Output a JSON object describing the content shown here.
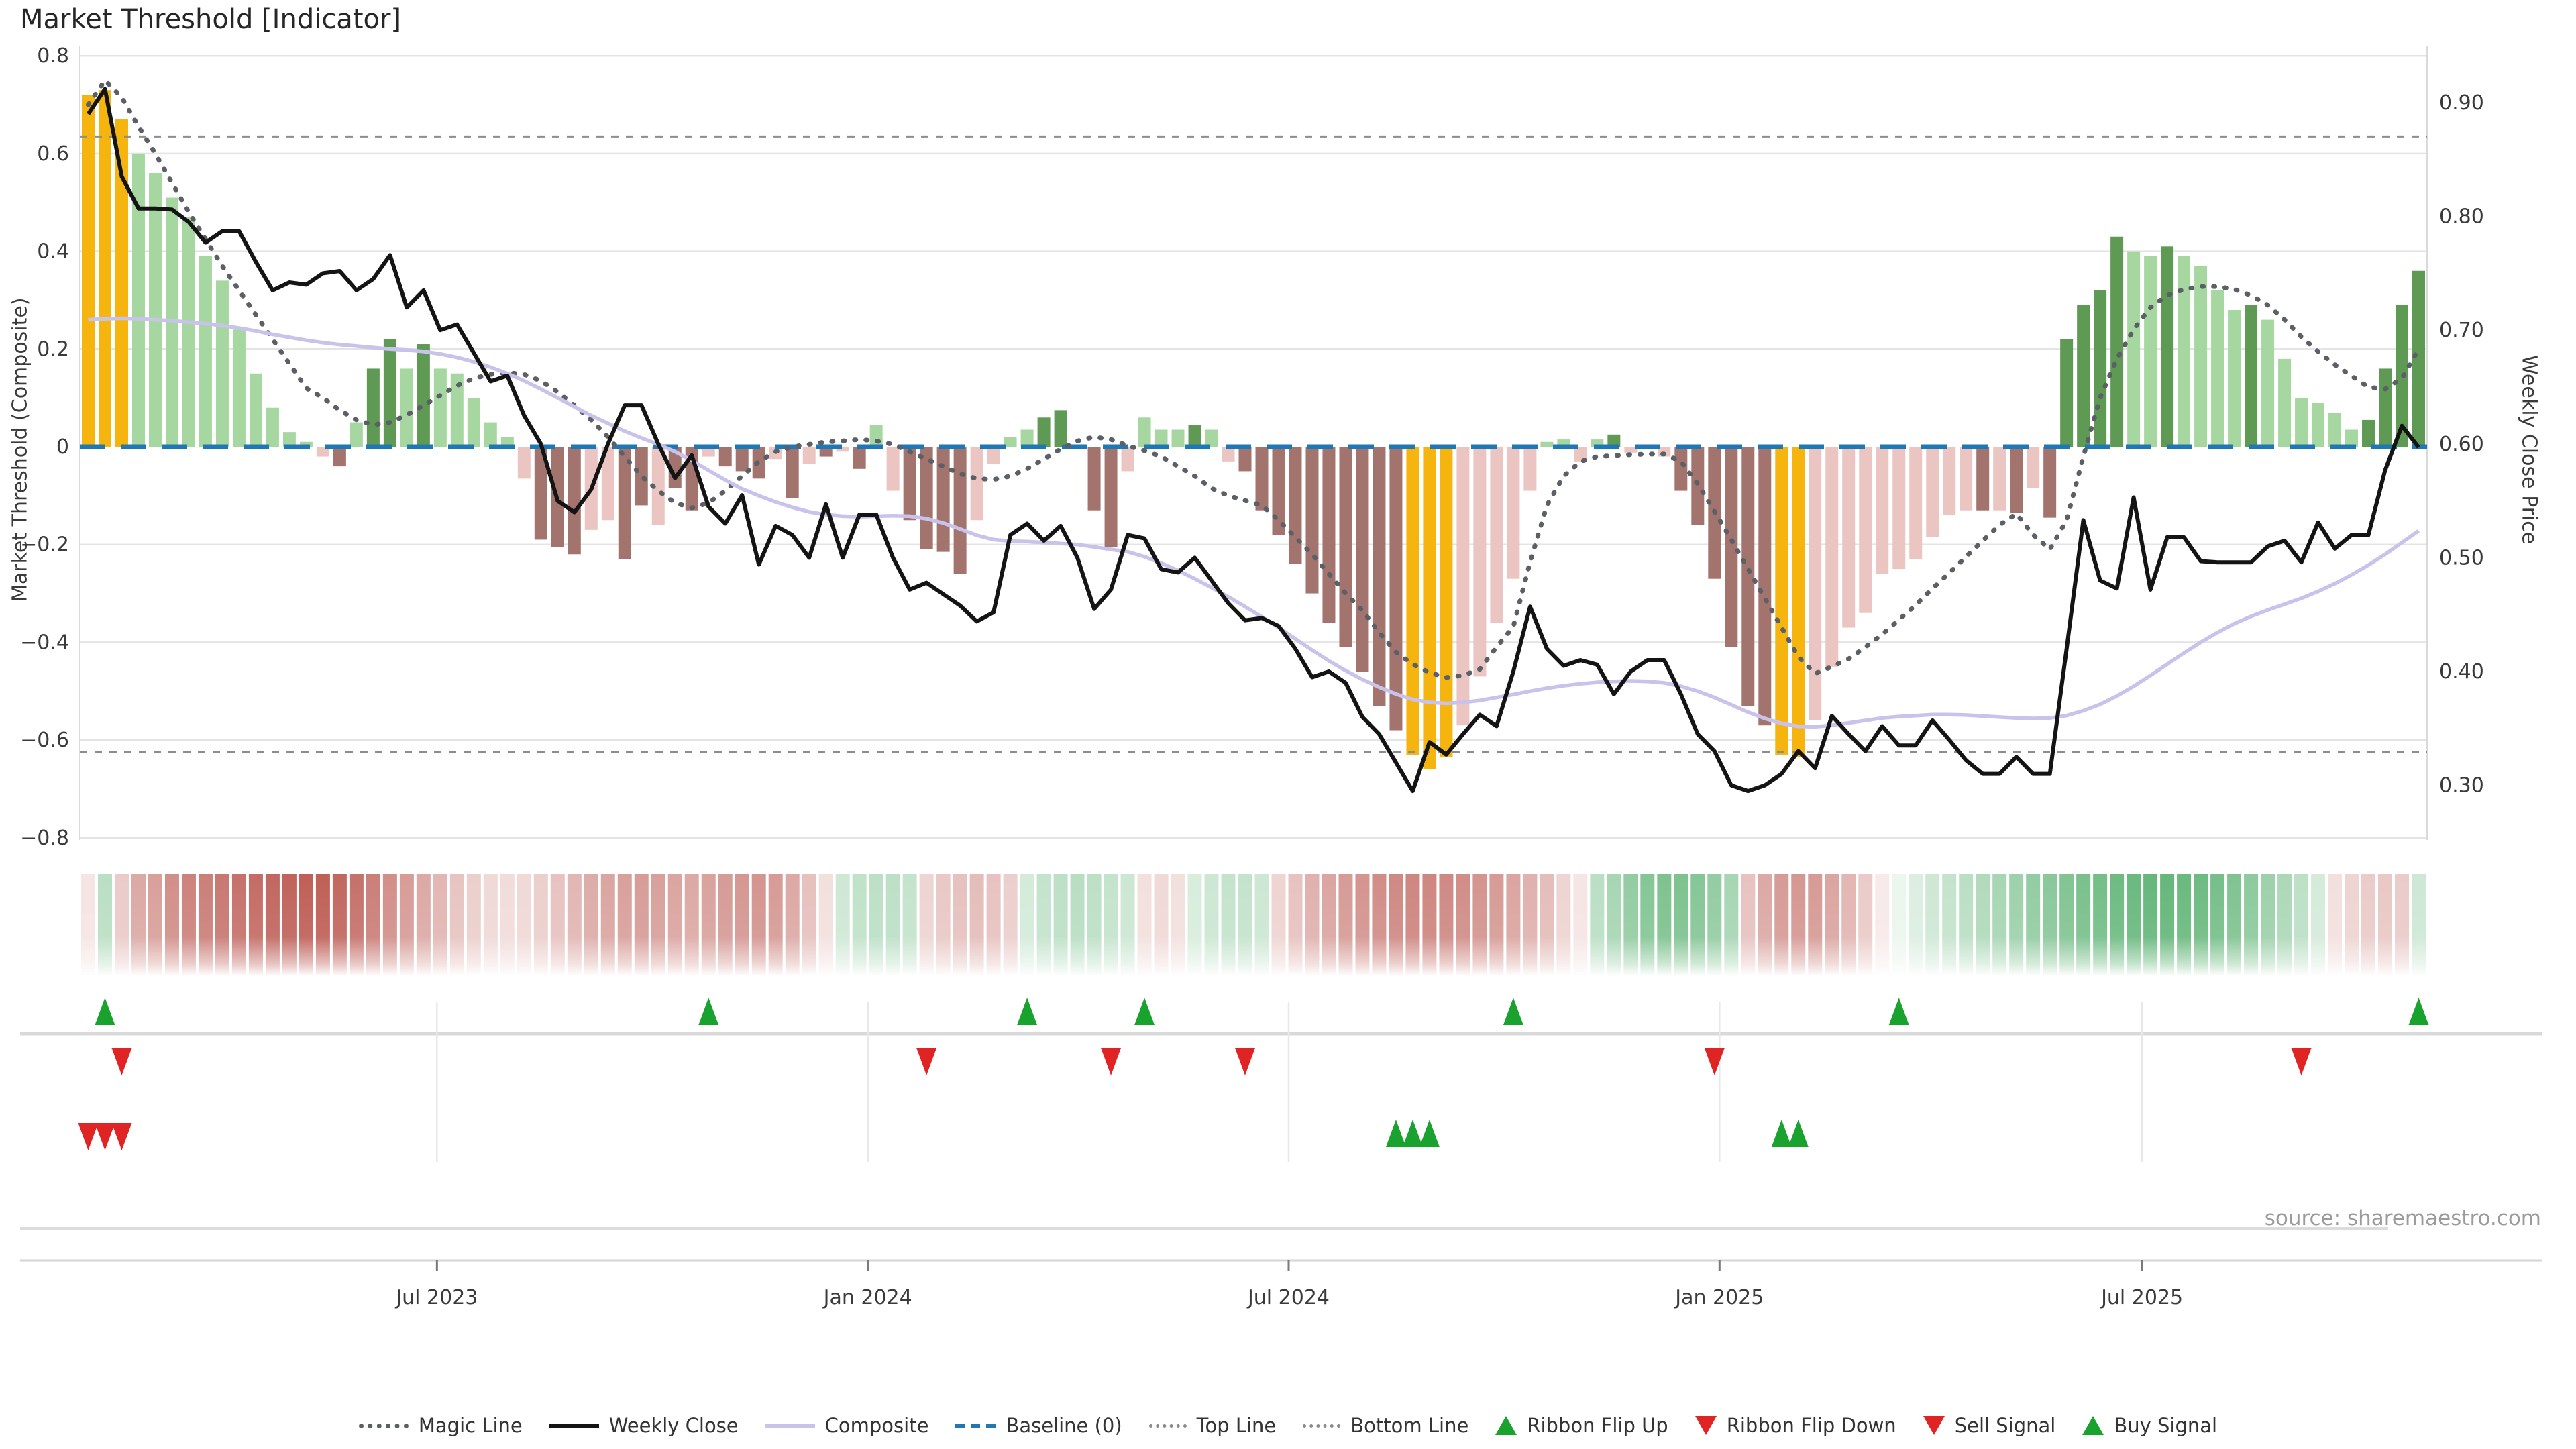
{
  "title": "Market Threshold [Indicator]",
  "source": "source: sharemaestro.com",
  "axes": {
    "left_label": "Market Threshold (Composite)",
    "right_label": "Weekly Close Price",
    "left_ticks": [
      {
        "v": 0.8,
        "label": "0.8"
      },
      {
        "v": 0.6,
        "label": "0.6"
      },
      {
        "v": 0.4,
        "label": "0.4"
      },
      {
        "v": 0.2,
        "label": "0.2"
      },
      {
        "v": 0,
        "label": "0"
      },
      {
        "v": -0.2,
        "label": "−0.2"
      },
      {
        "v": -0.4,
        "label": "−0.4"
      },
      {
        "v": -0.6,
        "label": "−0.6"
      },
      {
        "v": -0.8,
        "label": "−0.8"
      }
    ],
    "right_ticks": [
      {
        "v": 0.9,
        "label": "0.90"
      },
      {
        "v": 0.8,
        "label": "0.80"
      },
      {
        "v": 0.7,
        "label": "0.70"
      },
      {
        "v": 0.6,
        "label": "0.60"
      },
      {
        "v": 0.5,
        "label": "0.50"
      },
      {
        "v": 0.4,
        "label": "0.40"
      },
      {
        "v": 0.3,
        "label": "0.30"
      }
    ],
    "x_ticks": [
      {
        "label": "Jul 2023",
        "week": 21.3
      },
      {
        "label": "Jan 2024",
        "week": 47.0
      },
      {
        "label": "Jul 2024",
        "week": 72.1
      },
      {
        "label": "Jan 2025",
        "week": 97.8
      },
      {
        "label": "Jul 2025",
        "week": 123.0
      }
    ]
  },
  "colors": {
    "bar_palette": {
      "G": "#F6B40E",
      "g": "#A7D7A0",
      "d": "#5F9A55",
      "p": "#EBC5C1",
      "m": "#A3746D"
    },
    "weekly_close": "#141414",
    "composite": "#C9C2EB",
    "magic_line": "#5C6066",
    "baseline": "#1F77B4",
    "top_bottom_line": "#8D8D8D",
    "grid": "#E4E4E4",
    "signal_green": "#1AA22E",
    "signal_red": "#E02424",
    "ribbon_red_base": "#B9524A",
    "ribbon_green_base": "#3BA356"
  },
  "legend": {
    "items": [
      {
        "label": "Magic Line",
        "swatch": "magic"
      },
      {
        "label": "Weekly Close",
        "swatch": "close"
      },
      {
        "label": "Composite",
        "swatch": "composite"
      },
      {
        "label": "Baseline (0)",
        "swatch": "baseline"
      },
      {
        "label": "Top Line",
        "swatch": "topline"
      },
      {
        "label": "Bottom Line",
        "swatch": "bottomline"
      },
      {
        "label": "Ribbon Flip Up",
        "swatch": "tri-up"
      },
      {
        "label": "Ribbon Flip Down",
        "swatch": "tri-down"
      },
      {
        "label": "Sell Signal",
        "swatch": "tri-down"
      },
      {
        "label": "Buy Signal",
        "swatch": "tri-up"
      }
    ]
  },
  "chart_data": {
    "type": "bar",
    "weeks": 140,
    "ylim_left": [
      -0.8,
      0.8
    ],
    "ylim_right": [
      0.3,
      0.9
    ],
    "reference_lines": {
      "baseline": 0,
      "top_line": 0.635,
      "bottom_line": -0.625
    },
    "bars": {
      "values": [
        0.72,
        0.73,
        0.67,
        0.6,
        0.56,
        0.51,
        0.47,
        0.39,
        0.34,
        0.24,
        0.15,
        0.08,
        0.03,
        0.01,
        -0.02,
        -0.04,
        0.05,
        0.16,
        0.22,
        0.16,
        0.21,
        0.16,
        0.15,
        0.1,
        0.05,
        0.02,
        -0.065,
        -0.19,
        -0.205,
        -0.22,
        -0.17,
        -0.15,
        -0.23,
        -0.12,
        -0.16,
        -0.085,
        -0.13,
        -0.02,
        -0.04,
        -0.05,
        -0.065,
        -0.025,
        -0.105,
        -0.035,
        -0.02,
        -0.01,
        -0.045,
        0.045,
        -0.09,
        -0.15,
        -0.21,
        -0.215,
        -0.26,
        -0.15,
        -0.035,
        0.02,
        0.035,
        0.06,
        0.075,
        -0.005,
        -0.13,
        -0.205,
        -0.05,
        0.06,
        0.035,
        0.035,
        0.045,
        0.035,
        -0.03,
        -0.05,
        -0.13,
        -0.18,
        -0.24,
        -0.3,
        -0.36,
        -0.41,
        -0.46,
        -0.53,
        -0.58,
        -0.63,
        -0.66,
        -0.635,
        -0.57,
        -0.47,
        -0.36,
        -0.27,
        -0.09,
        0.01,
        0.015,
        -0.03,
        0.015,
        0.025,
        -0.012,
        -0.005,
        -0.02,
        -0.09,
        -0.16,
        -0.27,
        -0.41,
        -0.53,
        -0.57,
        -0.63,
        -0.635,
        -0.56,
        -0.45,
        -0.37,
        -0.34,
        -0.26,
        -0.25,
        -0.23,
        -0.185,
        -0.14,
        -0.13,
        -0.13,
        -0.13,
        -0.135,
        -0.085,
        -0.145,
        0.22,
        0.29,
        0.32,
        0.43,
        0.4,
        0.39,
        0.41,
        0.39,
        0.37,
        0.32,
        0.28,
        0.29,
        0.26,
        0.18,
        0.1,
        0.09,
        0.07,
        0.035,
        0.055,
        0.16,
        0.29,
        0.36
      ],
      "colors": "GGGgggggggggggpmgddgdgggggpmmmppmmpmmpmmmpmpmpmgpmmmmppggddpmmpgggdgpmmmmmmmmmmGGGpppppggpgdpppmmmmmmGGppppppppppmpmpmddddggdggggdggggggdddd"
    },
    "series": [
      {
        "name": "Weekly Close",
        "axis": "right",
        "values": [
          0.89,
          0.912,
          0.835,
          0.807,
          0.807,
          0.806,
          0.795,
          0.777,
          0.787,
          0.787,
          0.76,
          0.735,
          0.742,
          0.74,
          0.75,
          0.752,
          0.735,
          0.745,
          0.766,
          0.72,
          0.735,
          0.7,
          0.705,
          0.68,
          0.655,
          0.66,
          0.625,
          0.6,
          0.55,
          0.54,
          0.56,
          0.6,
          0.634,
          0.634,
          0.6,
          0.57,
          0.59,
          0.545,
          0.53,
          0.555,
          0.494,
          0.528,
          0.52,
          0.5,
          0.547,
          0.5,
          0.538,
          0.538,
          0.5,
          0.472,
          0.478,
          0.468,
          0.458,
          0.444,
          0.452,
          0.52,
          0.53,
          0.515,
          0.528,
          0.5,
          0.455,
          0.472,
          0.52,
          0.517,
          0.49,
          0.487,
          0.5,
          0.48,
          0.46,
          0.445,
          0.447,
          0.44,
          0.42,
          0.395,
          0.4,
          0.39,
          0.36,
          0.345,
          0.32,
          0.295,
          0.338,
          0.327,
          0.345,
          0.362,
          0.352,
          0.4,
          0.457,
          0.42,
          0.405,
          0.41,
          0.406,
          0.38,
          0.4,
          0.41,
          0.41,
          0.38,
          0.345,
          0.33,
          0.3,
          0.295,
          0.3,
          0.31,
          0.33,
          0.315,
          0.361,
          0.345,
          0.33,
          0.352,
          0.335,
          0.335,
          0.357,
          0.34,
          0.322,
          0.31,
          0.31,
          0.325,
          0.31,
          0.31,
          0.42,
          0.533,
          0.48,
          0.473,
          0.553,
          0.472,
          0.518,
          0.518,
          0.497,
          0.496,
          0.496,
          0.496,
          0.51,
          0.515,
          0.496,
          0.531,
          0.508,
          0.52,
          0.52,
          0.577,
          0.616,
          0.597
        ]
      },
      {
        "name": "Composite",
        "axis": "left",
        "values": [
          0.26,
          0.262,
          0.263,
          0.262,
          0.26,
          0.258,
          0.255,
          0.252,
          0.248,
          0.243,
          0.237,
          0.23,
          0.224,
          0.218,
          0.213,
          0.209,
          0.206,
          0.203,
          0.2,
          0.198,
          0.195,
          0.19,
          0.183,
          0.174,
          0.163,
          0.15,
          0.135,
          0.118,
          0.1,
          0.082,
          0.064,
          0.048,
          0.032,
          0.018,
          0.005,
          -0.01,
          -0.028,
          -0.048,
          -0.068,
          -0.086,
          -0.1,
          -0.113,
          -0.124,
          -0.133,
          -0.139,
          -0.142,
          -0.143,
          -0.142,
          -0.141,
          -0.142,
          -0.147,
          -0.156,
          -0.168,
          -0.181,
          -0.19,
          -0.193,
          -0.194,
          -0.196,
          -0.198,
          -0.2,
          -0.205,
          -0.21,
          -0.215,
          -0.225,
          -0.238,
          -0.253,
          -0.27,
          -0.288,
          -0.307,
          -0.327,
          -0.348,
          -0.37,
          -0.393,
          -0.416,
          -0.438,
          -0.458,
          -0.476,
          -0.492,
          -0.506,
          -0.517,
          -0.523,
          -0.525,
          -0.523,
          -0.519,
          -0.513,
          -0.507,
          -0.5,
          -0.494,
          -0.489,
          -0.485,
          -0.482,
          -0.48,
          -0.479,
          -0.48,
          -0.483,
          -0.49,
          -0.5,
          -0.513,
          -0.528,
          -0.543,
          -0.556,
          -0.566,
          -0.572,
          -0.573,
          -0.57,
          -0.565,
          -0.56,
          -0.555,
          -0.552,
          -0.55,
          -0.548,
          -0.548,
          -0.549,
          -0.551,
          -0.553,
          -0.555,
          -0.556,
          -0.555,
          -0.55,
          -0.54,
          -0.527,
          -0.51,
          -0.49,
          -0.468,
          -0.445,
          -0.422,
          -0.4,
          -0.38,
          -0.362,
          -0.347,
          -0.334,
          -0.322,
          -0.31,
          -0.296,
          -0.28,
          -0.262,
          -0.242,
          -0.22,
          -0.196,
          -0.172
        ]
      },
      {
        "name": "Magic Line",
        "axis": "left",
        "values": [
          0.7,
          0.75,
          0.715,
          0.655,
          0.6,
          0.54,
          0.48,
          0.425,
          0.37,
          0.32,
          0.27,
          0.22,
          0.17,
          0.12,
          0.1,
          0.075,
          0.055,
          0.045,
          0.05,
          0.065,
          0.085,
          0.105,
          0.125,
          0.14,
          0.148,
          0.152,
          0.148,
          0.135,
          0.112,
          0.085,
          0.055,
          0.02,
          -0.02,
          -0.06,
          -0.09,
          -0.115,
          -0.125,
          -0.115,
          -0.09,
          -0.06,
          -0.03,
          -0.01,
          0.0,
          0.005,
          0.01,
          0.012,
          0.015,
          0.012,
          0.005,
          -0.01,
          -0.025,
          -0.04,
          -0.055,
          -0.065,
          -0.067,
          -0.06,
          -0.045,
          -0.025,
          -0.005,
          0.012,
          0.02,
          0.015,
          0.002,
          -0.008,
          -0.02,
          -0.04,
          -0.06,
          -0.085,
          -0.1,
          -0.11,
          -0.12,
          -0.15,
          -0.185,
          -0.22,
          -0.26,
          -0.3,
          -0.335,
          -0.38,
          -0.42,
          -0.445,
          -0.462,
          -0.472,
          -0.468,
          -0.455,
          -0.41,
          -0.368,
          -0.236,
          -0.12,
          -0.06,
          -0.03,
          -0.02,
          -0.018,
          -0.016,
          -0.015,
          -0.015,
          -0.03,
          -0.076,
          -0.132,
          -0.19,
          -0.25,
          -0.31,
          -0.37,
          -0.43,
          -0.464,
          -0.45,
          -0.434,
          -0.41,
          -0.384,
          -0.354,
          -0.324,
          -0.29,
          -0.258,
          -0.225,
          -0.192,
          -0.16,
          -0.137,
          -0.18,
          -0.21,
          -0.15,
          -0.02,
          0.1,
          0.18,
          0.24,
          0.285,
          0.31,
          0.322,
          0.328,
          0.328,
          0.322,
          0.31,
          0.29,
          0.26,
          0.225,
          0.195,
          0.168,
          0.145,
          0.122,
          0.118,
          0.14,
          0.2
        ]
      }
    ],
    "ribbon": [
      -0.15,
      0.35,
      -0.3,
      -0.5,
      -0.55,
      -0.65,
      -0.72,
      -0.74,
      -0.78,
      -0.82,
      -0.85,
      -0.88,
      -0.9,
      -0.92,
      -0.92,
      -0.88,
      -0.82,
      -0.74,
      -0.65,
      -0.57,
      -0.5,
      -0.42,
      -0.34,
      -0.28,
      -0.22,
      -0.2,
      -0.22,
      -0.28,
      -0.35,
      -0.42,
      -0.48,
      -0.52,
      -0.55,
      -0.57,
      -0.55,
      -0.52,
      -0.5,
      -0.54,
      -0.58,
      -0.6,
      -0.62,
      -0.58,
      -0.5,
      -0.36,
      -0.18,
      0.25,
      0.32,
      0.34,
      0.34,
      0.3,
      -0.25,
      -0.32,
      -0.36,
      -0.38,
      -0.35,
      -0.28,
      0.22,
      0.3,
      0.34,
      0.36,
      0.34,
      0.3,
      0.26,
      -0.18,
      -0.22,
      -0.18,
      0.2,
      0.26,
      0.3,
      0.3,
      0.26,
      -0.25,
      -0.35,
      -0.45,
      -0.52,
      -0.58,
      -0.62,
      -0.66,
      -0.68,
      -0.7,
      -0.7,
      -0.68,
      -0.66,
      -0.62,
      -0.58,
      -0.52,
      -0.45,
      -0.38,
      -0.25,
      -0.15,
      0.35,
      0.45,
      0.55,
      0.62,
      0.66,
      0.66,
      0.62,
      0.55,
      0.45,
      -0.35,
      -0.5,
      -0.58,
      -0.6,
      -0.58,
      -0.52,
      -0.42,
      -0.3,
      -0.12,
      0.1,
      0.18,
      0.25,
      0.3,
      0.35,
      0.4,
      0.45,
      0.5,
      0.55,
      0.6,
      0.64,
      0.68,
      0.71,
      0.74,
      0.76,
      0.78,
      0.78,
      0.76,
      0.74,
      0.7,
      0.65,
      0.58,
      0.5,
      0.42,
      0.34,
      0.22,
      -0.18,
      -0.25,
      -0.3,
      -0.32,
      -0.3,
      0.25
    ],
    "signals": {
      "ribbon_flip_up_weeks": [
        1,
        37,
        56,
        63,
        85,
        108,
        139
      ],
      "ribbon_flip_down_weeks": [
        2,
        50,
        61,
        69,
        97,
        132
      ],
      "sell_weeks": [
        0,
        1,
        2
      ],
      "buy_weeks": [
        78,
        79,
        80,
        101,
        102
      ]
    }
  }
}
